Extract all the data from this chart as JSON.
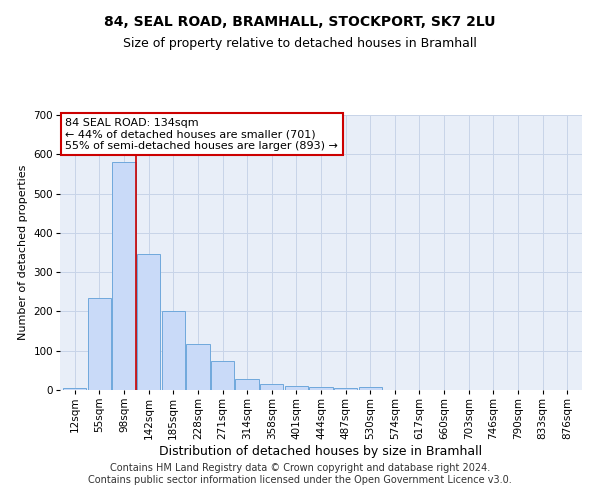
{
  "title1": "84, SEAL ROAD, BRAMHALL, STOCKPORT, SK7 2LU",
  "title2": "Size of property relative to detached houses in Bramhall",
  "xlabel": "Distribution of detached houses by size in Bramhall",
  "ylabel": "Number of detached properties",
  "bar_labels": [
    "12sqm",
    "55sqm",
    "98sqm",
    "142sqm",
    "185sqm",
    "228sqm",
    "271sqm",
    "314sqm",
    "358sqm",
    "401sqm",
    "444sqm",
    "487sqm",
    "530sqm",
    "574sqm",
    "617sqm",
    "660sqm",
    "703sqm",
    "746sqm",
    "790sqm",
    "833sqm",
    "876sqm"
  ],
  "bar_values": [
    5,
    235,
    580,
    345,
    200,
    118,
    75,
    27,
    15,
    11,
    8,
    5,
    8,
    0,
    0,
    0,
    0,
    0,
    0,
    0,
    0
  ],
  "bar_color": "#c9daf8",
  "bar_edge_color": "#6fa8dc",
  "red_line_x": 2.48,
  "annotation_text": "84 SEAL ROAD: 134sqm\n← 44% of detached houses are smaller (701)\n55% of semi-detached houses are larger (893) →",
  "annotation_box_color": "#ffffff",
  "annotation_box_edge_color": "#cc0000",
  "ylim": [
    0,
    700
  ],
  "yticks": [
    0,
    100,
    200,
    300,
    400,
    500,
    600,
    700
  ],
  "background_color": "#ffffff",
  "grid_color": "#c8d4e8",
  "footer_text": "Contains HM Land Registry data © Crown copyright and database right 2024.\nContains public sector information licensed under the Open Government Licence v3.0.",
  "title1_fontsize": 10,
  "title2_fontsize": 9,
  "xlabel_fontsize": 9,
  "ylabel_fontsize": 8,
  "tick_fontsize": 7.5,
  "footer_fontsize": 7,
  "ann_fontsize": 8
}
